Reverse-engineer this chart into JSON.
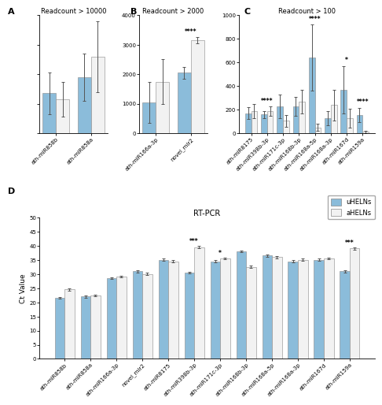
{
  "panel_A": {
    "title": "Readcount > 10000",
    "categories": [
      "ath-miR858b",
      "ath-miR858a"
    ],
    "uHELNs": [
      1350,
      1900
    ],
    "aHELNs": [
      1150,
      2600
    ],
    "uHELNs_err": [
      700,
      800
    ],
    "aHELNs_err": [
      600,
      1200
    ],
    "ylim": [
      0,
      4000
    ],
    "yticks": [
      0,
      1000,
      2000,
      3000,
      4000
    ],
    "sig": [
      "",
      ""
    ]
  },
  "panel_B": {
    "title": "Readcount > 2000",
    "categories": [
      "ath-miR166a-3p",
      "novel_mir2"
    ],
    "uHELNs": [
      1050,
      2050
    ],
    "aHELNs": [
      1750,
      3150
    ],
    "uHELNs_err": [
      700,
      200
    ],
    "aHELNs_err": [
      750,
      100
    ],
    "ylim": [
      0,
      4000
    ],
    "yticks": [
      0,
      1000,
      2000,
      3000,
      4000
    ],
    "sig": [
      "",
      "****"
    ]
  },
  "panel_C": {
    "title": "Readcount > 100",
    "categories": [
      "ath-miR8175",
      "ath-miR398b-3p",
      "ath-miR171c-3p",
      "ath-miR168b-3p",
      "ath-miR168a-5p",
      "ath-miR168a-3p",
      "ath-miR167d",
      "ath-miR159a"
    ],
    "uHELNs": [
      170,
      160,
      230,
      230,
      640,
      130,
      370,
      155
    ],
    "aHELNs": [
      185,
      185,
      105,
      270,
      50,
      240,
      130,
      10
    ],
    "uHELNs_err": [
      50,
      30,
      100,
      80,
      280,
      60,
      200,
      60
    ],
    "aHELNs_err": [
      60,
      40,
      50,
      100,
      30,
      130,
      80,
      8
    ],
    "ylim": [
      0,
      1000
    ],
    "yticks": [
      0,
      200,
      400,
      600,
      800,
      1000
    ],
    "sig": [
      "",
      "****",
      "",
      "",
      "****",
      "",
      "*",
      "****"
    ]
  },
  "panel_D": {
    "title": "RT-PCR",
    "ylabel": "Ct Value",
    "categories": [
      "ath-miR858b",
      "ath-miR858a",
      "ath-miR166a-3p",
      "novel_mir2",
      "ath-miR8175",
      "ath-miR398b-3p",
      "ath-miR171c-3p",
      "ath-miR168b-3p",
      "ath-miR168a-5p",
      "ath-miR168a-3p",
      "ath-miR167d",
      "ath-miR159a"
    ],
    "uHELNs": [
      21.5,
      22.0,
      28.5,
      31.0,
      35.0,
      30.5,
      34.5,
      38.0,
      36.5,
      34.5,
      35.0,
      31.0
    ],
    "aHELNs": [
      24.5,
      22.5,
      29.0,
      30.0,
      34.5,
      39.5,
      35.5,
      32.5,
      36.0,
      35.0,
      35.5,
      39.0
    ],
    "uHELNs_err": [
      0.3,
      0.3,
      0.3,
      0.4,
      0.4,
      0.4,
      0.4,
      0.4,
      0.4,
      0.4,
      0.4,
      0.4
    ],
    "aHELNs_err": [
      0.3,
      0.3,
      0.3,
      0.4,
      0.4,
      0.4,
      0.4,
      0.4,
      0.4,
      0.4,
      0.4,
      0.4
    ],
    "ylim": [
      0,
      50
    ],
    "yticks": [
      0,
      5,
      10,
      15,
      20,
      25,
      30,
      35,
      40,
      45,
      50
    ],
    "sig": [
      "",
      "",
      "",
      "",
      "",
      "***",
      "*",
      "",
      "",
      "",
      "",
      "***"
    ]
  },
  "bar_width": 0.38,
  "uHELNs_color": "#8BBCDA",
  "aHELNs_color": "#F2F2F2",
  "label_fontsize": 6,
  "tick_fontsize": 5,
  "title_fontsize": 6,
  "panel_label_fontsize": 8,
  "sig_fontsize": 5.5
}
